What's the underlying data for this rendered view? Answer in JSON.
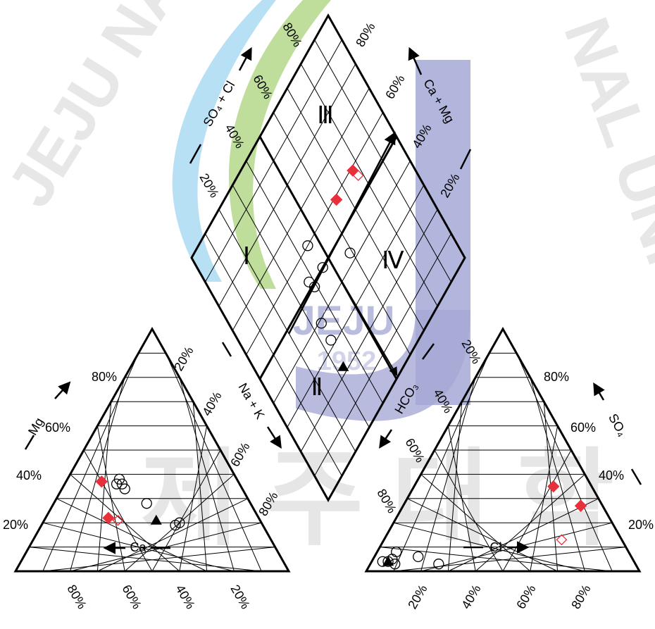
{
  "chart_data": {
    "type": "scatter",
    "subtype": "piper-diagram",
    "colors": {
      "ink": "#000000",
      "red": "#e8303a",
      "grid": "#000000",
      "wm_blue": "#8ecfee",
      "wm_green": "#9fcf6a",
      "wm_purple": "#9b9fd2",
      "wm_gray": "#c9c9c9"
    },
    "cation_triangle": {
      "left_axis_title": "Mg",
      "bottom_axis_title": "Ca",
      "right_axis_title": "Na + K",
      "left_ticks": [
        "20%",
        "40%",
        "60%",
        "80%"
      ],
      "bottom_ticks": [
        "80%",
        "60%",
        "40%",
        "20%"
      ],
      "right_ticks": [
        "20%",
        "40%",
        "60%",
        "80%"
      ]
    },
    "anion_triangle": {
      "right_axis_title": "SO₄",
      "bottom_axis_title": "Cl",
      "left_axis_title": "HCO₃",
      "right_ticks": [
        "20%",
        "40%",
        "60%",
        "80%"
      ],
      "bottom_ticks": [
        "20%",
        "40%",
        "60%",
        "80%"
      ],
      "left_ticks": [
        "20%",
        "40%",
        "60%",
        "80%"
      ]
    },
    "diamond": {
      "upper_left_title": "SO₄ + Cl",
      "upper_right_title": "Ca + Mg",
      "upper_left_ticks": [
        "20%",
        "40%",
        "60%",
        "80%"
      ],
      "upper_right_ticks": [
        "20%",
        "40%",
        "60%",
        "80%"
      ],
      "zones": [
        "Ⅰ",
        "Ⅱ",
        "Ⅲ",
        "Ⅳ"
      ]
    },
    "series": [
      {
        "marker": "filled-diamond",
        "points": [
          {
            "ca": 50,
            "mg": 37,
            "na": 13,
            "hco3": 14,
            "so4": 35,
            "cl": 51
          },
          {
            "ca": 55,
            "mg": 22,
            "na": 23,
            "hco3": 8,
            "so4": 27,
            "cl": 65
          }
        ],
        "diamond_points": [
          {
            "dx": 65,
            "dy": 59
          },
          {
            "dx": 77,
            "dy": 59
          }
        ]
      },
      {
        "marker": "open-diamond",
        "points": [
          {
            "ca": 52,
            "mg": 21,
            "na": 27,
            "hco3": 22,
            "so4": 13,
            "cl": 65
          }
        ],
        "diamond_points": [
          {
            "dx": 78,
            "dy": 56
          }
        ]
      },
      {
        "marker": "open-circle",
        "points": [
          {
            "ca": 43,
            "mg": 38,
            "na": 19,
            "hco3": 92,
            "so4": 4,
            "cl": 4
          },
          {
            "ca": 45,
            "mg": 36,
            "na": 19,
            "hco3": 90,
            "so4": 4,
            "cl": 6
          },
          {
            "ca": 43,
            "mg": 36,
            "na": 21,
            "hco3": 88,
            "so4": 5,
            "cl": 7
          },
          {
            "ca": 43,
            "mg": 34,
            "na": 23,
            "hco3": 85,
            "so4": 8,
            "cl": 7
          },
          {
            "ca": 38,
            "mg": 28,
            "na": 34,
            "hco3": 78,
            "so4": 6,
            "cl": 16
          },
          {
            "ca": 30,
            "mg": 20,
            "na": 50,
            "hco3": 72,
            "so4": 3,
            "cl": 25
          },
          {
            "ca": 32,
            "mg": 19,
            "na": 49,
            "hco3": 88,
            "so4": 3,
            "cl": 9
          }
        ],
        "diamond_points": [
          {
            "dx": 34,
            "dy": 39
          },
          {
            "dx": 39,
            "dy": 49
          },
          {
            "dx": 38,
            "dy": 52
          },
          {
            "dx": 45,
            "dy": 60
          },
          {
            "dx": 46,
            "dy": 50
          },
          {
            "dx": 59,
            "dy": 43
          },
          {
            "dx": 34,
            "dy": 32
          }
        ]
      },
      {
        "marker": "filled-triangle",
        "points": [
          {
            "ca": 38,
            "mg": 21,
            "na": 41,
            "hco3": 90,
            "so4": 4,
            "cl": 6
          }
        ],
        "diamond_points": [
          {
            "dx": 33,
            "dy": 22
          }
        ]
      }
    ]
  }
}
